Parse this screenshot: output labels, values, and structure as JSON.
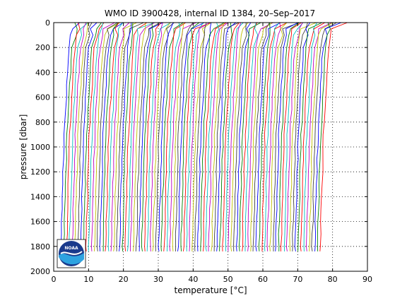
{
  "chart_data": {
    "type": "line",
    "title": "WMO ID 3900428, internal ID 1384, 20–Sep–2017",
    "xlabel": "temperature [",
    "xlabel_unit": "°C]",
    "ylabel": "pressure [dbar]",
    "xlim": [
      0,
      90
    ],
    "ylim": [
      2000,
      0
    ],
    "y_reversed": true,
    "xticks": [
      "0",
      "10",
      "20",
      "30",
      "40",
      "50",
      "60",
      "70",
      "80",
      "90"
    ],
    "yticks": [
      "0",
      "200",
      "400",
      "600",
      "800",
      "1000",
      "1200",
      "1400",
      "1600",
      "1800",
      "2000"
    ],
    "grid": "dotted",
    "logo_text": "NOAA",
    "n_profiles": 94,
    "profile_offset_step": 0.8,
    "profile_depths": [
      [
        0,
        5
      ],
      [
        50,
        4.8
      ],
      [
        100,
        4.6
      ],
      [
        200,
        4.5
      ],
      [
        300,
        4.2
      ],
      [
        400,
        4.0
      ],
      [
        500,
        3.8
      ],
      [
        600,
        3.6
      ],
      [
        700,
        3.4
      ],
      [
        800,
        3.2
      ],
      [
        900,
        3.0
      ],
      [
        1000,
        2.9
      ],
      [
        1100,
        2.8
      ],
      [
        1200,
        2.7
      ],
      [
        1300,
        2.6
      ],
      [
        1400,
        2.5
      ],
      [
        1500,
        2.4
      ],
      [
        1600,
        2.3
      ],
      [
        1700,
        2.2
      ],
      [
        1800,
        2.1
      ],
      [
        1840,
        2.1
      ]
    ],
    "surface_segment": {
      "top_pressure": 0,
      "warming_range": [
        0,
        5
      ]
    },
    "series_colors": [
      "#0000ff",
      "#008000",
      "#ff0000",
      "#00bfbf",
      "#bf00bf",
      "#bfbf00",
      "#404040"
    ]
  }
}
